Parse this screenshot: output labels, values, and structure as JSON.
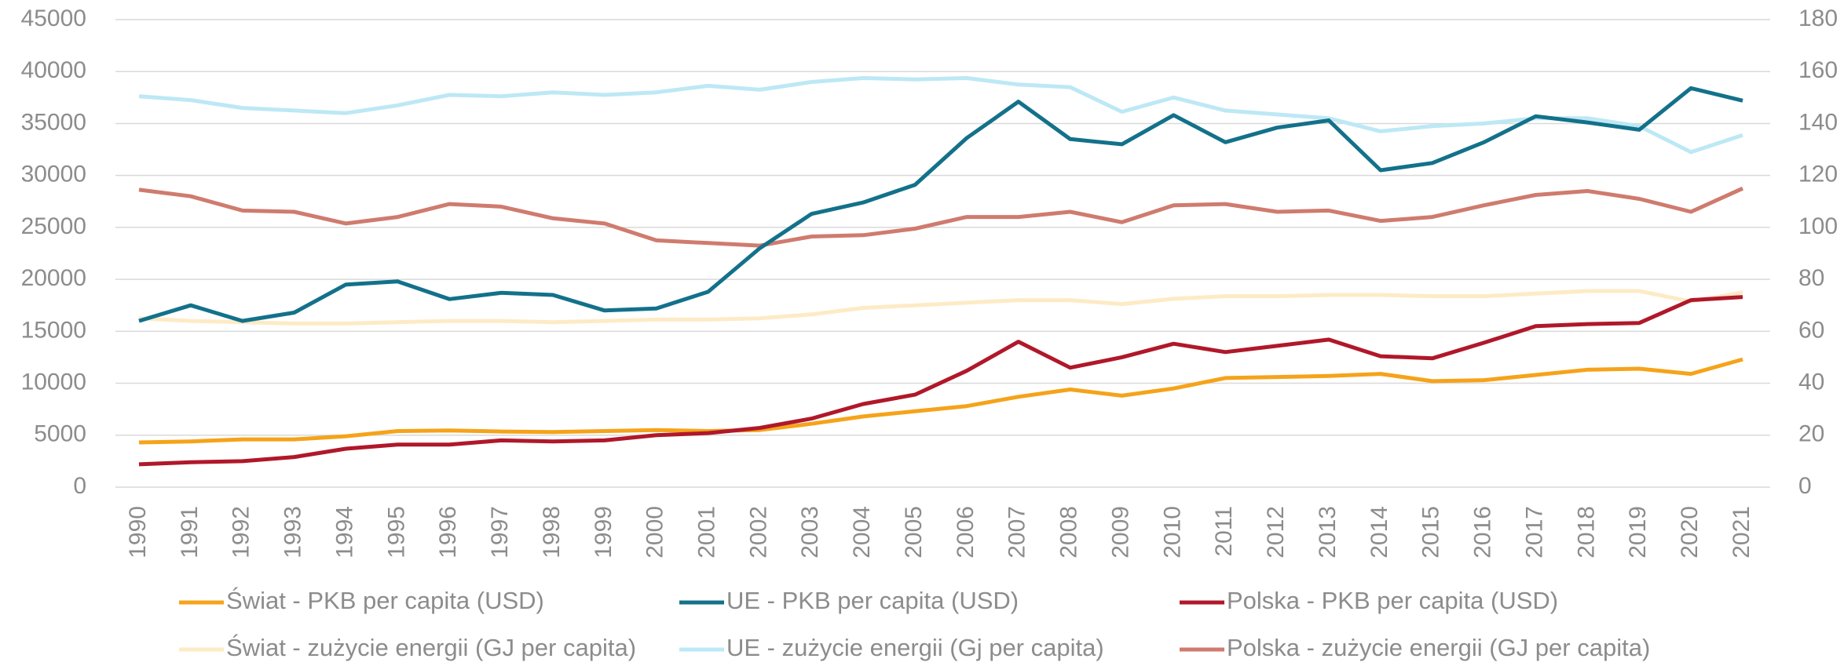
{
  "chart_data": {
    "type": "line",
    "categories": [
      "1990",
      "1991",
      "1992",
      "1993",
      "1994",
      "1995",
      "1996",
      "1997",
      "1998",
      "1999",
      "2000",
      "2001",
      "2002",
      "2003",
      "2004",
      "2005",
      "2006",
      "2007",
      "2008",
      "2009",
      "2010",
      "2011",
      "2012",
      "2013",
      "2014",
      "2015",
      "2016",
      "2017",
      "2018",
      "2019",
      "2020",
      "2021"
    ],
    "ylim": [
      0,
      45000
    ],
    "yticks": [
      0,
      5000,
      10000,
      15000,
      20000,
      25000,
      30000,
      35000,
      40000,
      45000
    ],
    "y2lim": [
      0,
      180
    ],
    "y2ticks": [
      0,
      20,
      40,
      60,
      80,
      100,
      120,
      140,
      160,
      180
    ],
    "grid": true,
    "series": [
      {
        "name": "Świat - PKB per capita (USD)",
        "color": "#f5a31a",
        "values": [
          4300,
          4400,
          4600,
          4600,
          4900,
          5400,
          5450,
          5350,
          5300,
          5400,
          5500,
          5400,
          5500,
          6100,
          6800,
          7300,
          7800,
          8700,
          9400,
          8800,
          9500,
          10500,
          10600,
          10700,
          10900,
          10200,
          10300,
          10800,
          11300,
          11400,
          10900,
          12300
        ]
      },
      {
        "name": "UE - PKB per capita (USD)",
        "color": "#13718a",
        "values": [
          16000,
          17500,
          16000,
          16800,
          19500,
          19800,
          18100,
          18700,
          18500,
          17000,
          17200,
          18800,
          23000,
          26300,
          27400,
          29100,
          33600,
          37100,
          33500,
          33000,
          35800,
          33200,
          34600,
          35300,
          30500,
          31200,
          33200,
          35700,
          35100,
          34400,
          38400,
          37200
        ]
      },
      {
        "name": "Polska - PKB per capita (USD)",
        "color": "#b0182a",
        "values": [
          2200,
          2400,
          2500,
          2900,
          3700,
          4100,
          4100,
          4500,
          4400,
          4500,
          5000,
          5200,
          5700,
          6600,
          8000,
          8900,
          11200,
          14000,
          11500,
          12500,
          13800,
          13000,
          13600,
          14200,
          12600,
          12400,
          13900,
          15500,
          15700,
          15800,
          18000,
          18300
        ]
      },
      {
        "name": "Świat - zużycie energii (GJ per capita)",
        "color": "#fdebc6",
        "axis": "y2",
        "values": [
          65,
          64,
          63.5,
          63,
          63,
          63.5,
          64,
          64,
          63.5,
          64,
          64.5,
          64.5,
          65,
          66.5,
          69,
          70,
          71,
          72,
          72,
          70.5,
          72.5,
          73.5,
          73.5,
          74,
          74,
          73.5,
          73.5,
          74.5,
          75.5,
          75.5,
          71.5,
          75
        ]
      },
      {
        "name": "UE - zużycie energii (Gj per capita)",
        "color": "#bde8f5",
        "axis": "y2",
        "values": [
          150.5,
          149,
          146,
          145,
          144,
          147,
          151,
          150.5,
          152,
          151,
          152,
          154.5,
          153,
          156,
          157.5,
          157,
          157.5,
          155,
          154,
          144.5,
          150,
          145,
          143.5,
          142,
          137,
          139,
          140,
          142,
          142,
          139,
          129,
          135.5
        ]
      },
      {
        "name": "Polska - zużycie energii (GJ per capita)",
        "color": "#cf7b6e",
        "axis": "y2",
        "values": [
          114.5,
          112,
          106.5,
          106,
          101.5,
          104,
          109,
          108,
          103.5,
          101.5,
          95,
          94,
          93,
          96.5,
          97,
          99.5,
          104,
          104,
          106,
          102,
          108.5,
          109,
          106,
          106.5,
          102.5,
          104,
          108.5,
          112.5,
          114,
          111,
          106,
          115
        ]
      }
    ]
  }
}
